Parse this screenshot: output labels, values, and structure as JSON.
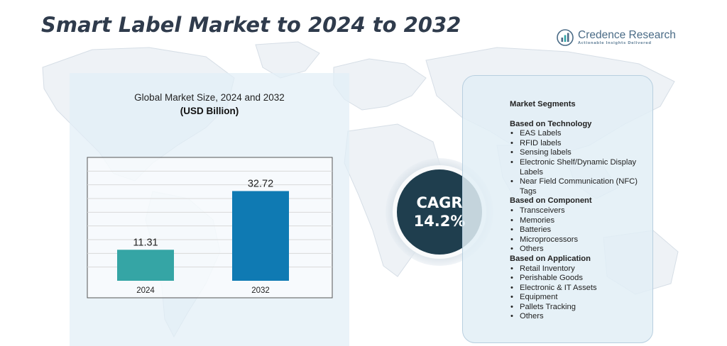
{
  "page": {
    "title": "Smart Label Market to 2024 to 2032",
    "logo": {
      "icon": "bar-chart-icon",
      "name": "Credence Research",
      "tagline": "Actionable Insights Delivered",
      "color": "#4a6b86"
    }
  },
  "chart_panel": {
    "title": "Global Market Size,  2024 and 2032",
    "subtitle": "(USD Billion)"
  },
  "chart_data": {
    "type": "bar",
    "title": "Global Market Size,  2024 and 2032",
    "subtitle": "(USD Billion)",
    "categories": [
      "2024",
      "2032"
    ],
    "values": [
      11.31,
      32.72
    ],
    "value_labels": [
      "11.31",
      "32.72"
    ],
    "colors": [
      "#35a5a5",
      "#0f7ab3"
    ],
    "ylim": [
      0,
      45
    ],
    "grid": true,
    "xlabel": "",
    "ylabel": ""
  },
  "cagr": {
    "label": "CAGR",
    "value": "14.2%",
    "color": "#1f3e4e"
  },
  "segments": {
    "title": "Market Segments",
    "groups": [
      {
        "title": "Based on Technology",
        "items": [
          "EAS Labels",
          "RFID labels",
          "Sensing labels",
          "Electronic Shelf/Dynamic Display Labels",
          "Near Field Communication (NFC) Tags"
        ]
      },
      {
        "title": "Based on Component",
        "items": [
          "Transceivers",
          "Memories",
          "Batteries",
          "Microprocessors",
          "Others"
        ]
      },
      {
        "title": "Based on Application",
        "items": [
          "Retail Inventory",
          "Perishable Goods",
          "Electronic & IT Assets",
          "Equipment",
          "Pallets Tracking",
          "Others"
        ]
      }
    ]
  }
}
